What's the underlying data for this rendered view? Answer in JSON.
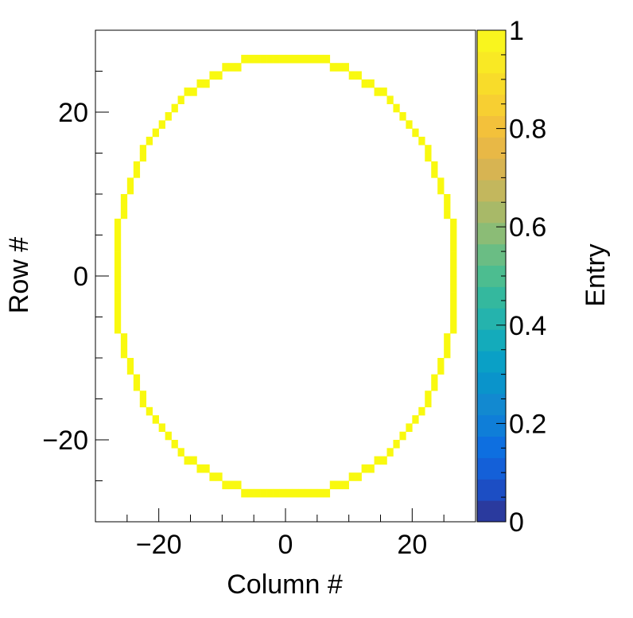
{
  "chart_data": {
    "type": "heatmap",
    "xlabel": "Column #",
    "ylabel": "Row #",
    "colorbar_label": "Entry",
    "xlim": [
      -30,
      30
    ],
    "ylim": [
      -30,
      30
    ],
    "zlim": [
      0,
      1
    ],
    "x_ticks": [
      -20,
      0,
      20
    ],
    "x_tick_labels": [
      "−20",
      "0",
      "20"
    ],
    "y_ticks": [
      -20,
      0,
      20
    ],
    "y_tick_labels": [
      "−20",
      "0",
      "20"
    ],
    "colorbar_ticks": [
      0,
      0.2,
      0.4,
      0.6,
      0.8,
      1
    ],
    "colorbar_tick_labels": [
      "0",
      "0.2",
      "0.4",
      "0.6",
      "0.8",
      "1"
    ],
    "grid": false,
    "legend": "colorbar-right",
    "cell_value": 1,
    "cell_color": "#f9f90f",
    "ring_radius_x": 27.5,
    "ring_radius_y": 27.5,
    "palette": [
      "#2a3a9e",
      "#1c4ec4",
      "#1460d8",
      "#0e6fe0",
      "#0f7ed8",
      "#1289d0",
      "#0a94cb",
      "#0aa0c6",
      "#14abbb",
      "#25b3ad",
      "#34b89e",
      "#4cbd90",
      "#6abd84",
      "#8bbc76",
      "#a8b968",
      "#c3b75d",
      "#d7b452",
      "#e8b846",
      "#f3c13b",
      "#f7cf32",
      "#f8dc2a",
      "#f9e924",
      "#f9f51e"
    ]
  }
}
